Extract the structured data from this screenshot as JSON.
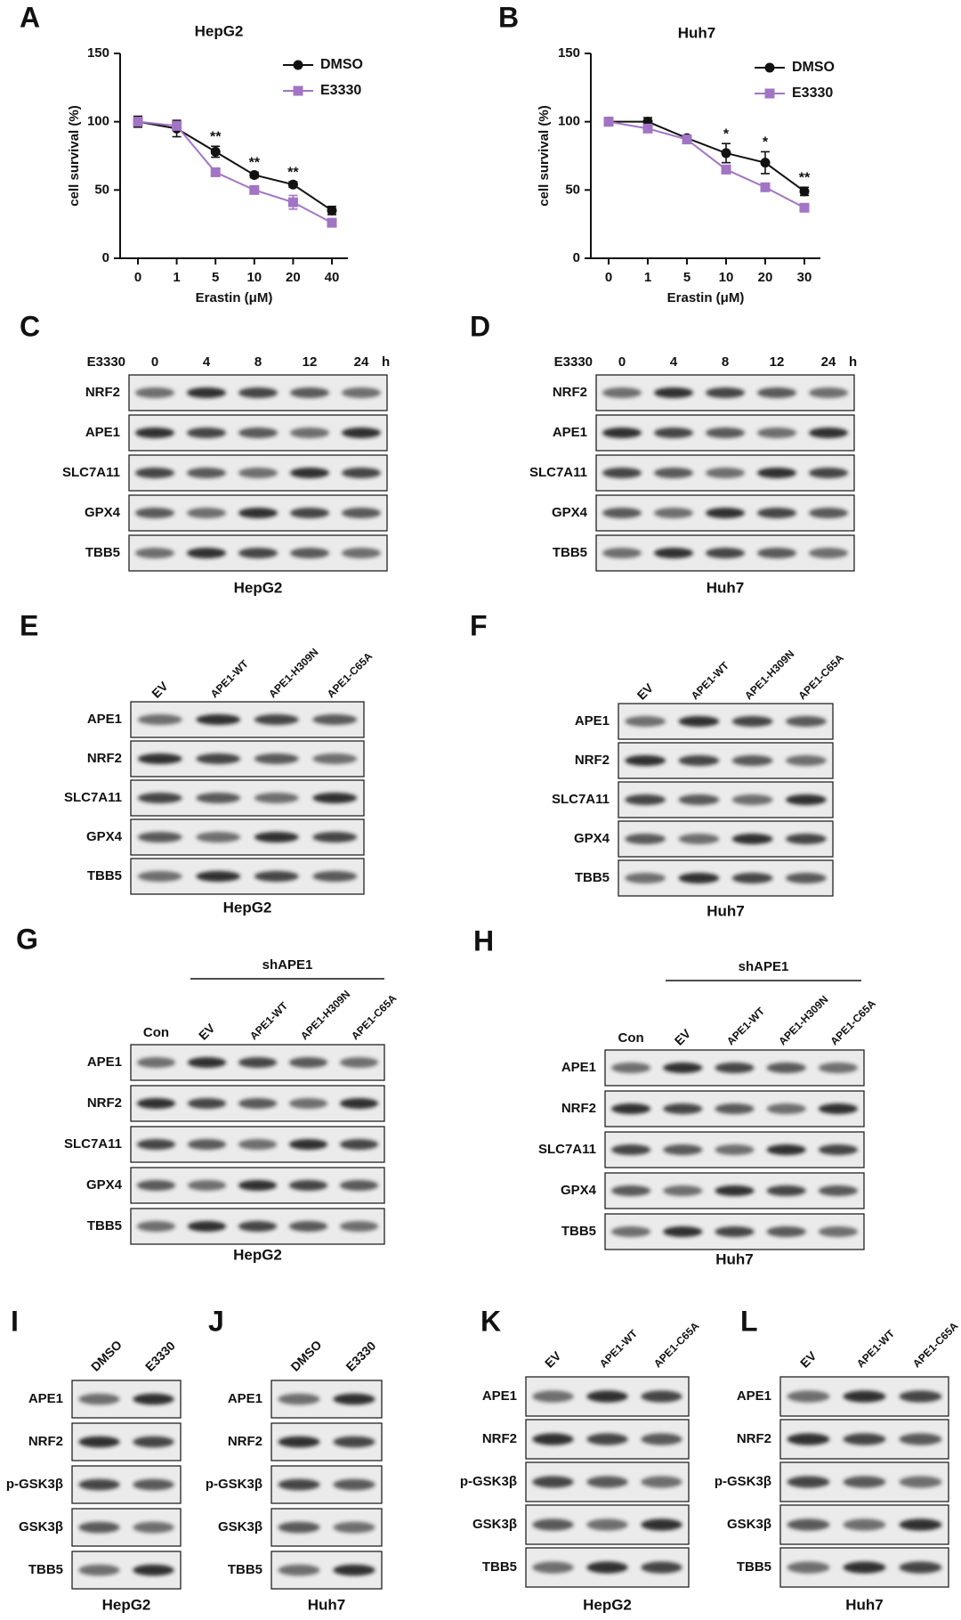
{
  "chart_data": [
    {
      "type": "line",
      "panel": "A",
      "title": "HepG2",
      "x_label": "Erastin (μM)",
      "y_label": "cell survival  (%)",
      "categories": [
        "0",
        "1",
        "5",
        "10",
        "20",
        "40"
      ],
      "series": [
        {
          "name": "DMSO",
          "color": "#111111",
          "marker": "circle",
          "values": [
            100,
            95,
            78,
            61,
            54,
            35
          ],
          "errors": [
            4,
            6,
            4,
            2,
            2,
            3
          ]
        },
        {
          "name": "E3330",
          "color": "#a274c4",
          "marker": "square",
          "values": [
            100,
            97,
            63,
            50,
            41,
            26
          ],
          "errors": [
            2,
            3,
            2,
            2,
            5,
            2
          ]
        }
      ],
      "significance": [
        null,
        null,
        "**",
        "**",
        "**",
        null
      ],
      "ylim": [
        0,
        150
      ],
      "yticks": [
        0,
        50,
        100,
        150
      ]
    },
    {
      "type": "line",
      "panel": "B",
      "title": "Huh7",
      "x_label": "Erastin (μM)",
      "y_label": "cell survival  (%)",
      "categories": [
        "0",
        "1",
        "5",
        "10",
        "20",
        "30"
      ],
      "series": [
        {
          "name": "DMSO",
          "color": "#111111",
          "marker": "circle",
          "values": [
            100,
            100,
            88,
            77,
            70,
            49
          ],
          "errors": [
            3,
            3,
            2,
            7,
            8,
            3
          ]
        },
        {
          "name": "E3330",
          "color": "#a274c4",
          "marker": "square",
          "values": [
            100,
            95,
            87,
            65,
            52,
            37
          ],
          "errors": [
            2,
            2,
            2,
            3,
            2,
            2
          ]
        }
      ],
      "significance": [
        null,
        null,
        null,
        "*",
        "*",
        "**"
      ],
      "ylim": [
        0,
        150
      ],
      "yticks": [
        0,
        50,
        100,
        150
      ]
    }
  ],
  "blots": [
    {
      "panel": "C",
      "treatment": "E3330",
      "lanes": [
        "0",
        "4",
        "8",
        "12",
        "24"
      ],
      "unit": "h",
      "rows": [
        "NRF2",
        "APE1",
        "SLC7A11",
        "GPX4",
        "TBB5"
      ],
      "cell_line": "HepG2"
    },
    {
      "panel": "D",
      "treatment": "E3330",
      "lanes": [
        "0",
        "4",
        "8",
        "12",
        "24"
      ],
      "unit": "h",
      "rows": [
        "NRF2",
        "APE1",
        "SLC7A11",
        "GPX4",
        "TBB5"
      ],
      "cell_line": "Huh7"
    },
    {
      "panel": "E",
      "lanes": [
        "EV",
        "APE1-WT",
        "APE1-H309N",
        "APE1-C65A"
      ],
      "rows": [
        "APE1",
        "NRF2",
        "SLC7A11",
        "GPX4",
        "TBB5"
      ],
      "cell_line": "HepG2"
    },
    {
      "panel": "F",
      "lanes": [
        "EV",
        "APE1-WT",
        "APE1-H309N",
        "APE1-C65A"
      ],
      "rows": [
        "APE1",
        "NRF2",
        "SLC7A11",
        "GPX4",
        "TBB5"
      ],
      "cell_line": "Huh7"
    },
    {
      "panel": "G",
      "group": "shAPE1",
      "lanes": [
        "Con",
        "EV",
        "APE1-WT",
        "APE1-H309N",
        "APE1-C65A"
      ],
      "rows": [
        "APE1",
        "NRF2",
        "SLC7A11",
        "GPX4",
        "TBB5"
      ],
      "cell_line": "HepG2"
    },
    {
      "panel": "H",
      "group": "shAPE1",
      "lanes": [
        "Con",
        "EV",
        "APE1-WT",
        "APE1-H309N",
        "APE1-C65A"
      ],
      "rows": [
        "APE1",
        "NRF2",
        "SLC7A11",
        "GPX4",
        "TBB5"
      ],
      "cell_line": "Huh7"
    },
    {
      "panel": "I",
      "lanes": [
        "DMSO",
        "E3330"
      ],
      "rows": [
        "APE1",
        "NRF2",
        "p-GSK3β",
        "GSK3β",
        "TBB5"
      ],
      "cell_line": "HepG2"
    },
    {
      "panel": "J",
      "lanes": [
        "DMSO",
        "E3330"
      ],
      "rows": [
        "APE1",
        "NRF2",
        "p-GSK3β",
        "GSK3β",
        "TBB5"
      ],
      "cell_line": "Huh7"
    },
    {
      "panel": "K",
      "lanes": [
        "EV",
        "APE1-WT",
        "APE1-C65A"
      ],
      "rows": [
        "APE1",
        "NRF2",
        "p-GSK3β",
        "GSK3β",
        "TBB5"
      ],
      "cell_line": "HepG2"
    },
    {
      "panel": "L",
      "lanes": [
        "EV",
        "APE1-WT",
        "APE1-C65A"
      ],
      "rows": [
        "APE1",
        "NRF2",
        "p-GSK3β",
        "GSK3β",
        "TBB5"
      ],
      "cell_line": "Huh7"
    }
  ]
}
